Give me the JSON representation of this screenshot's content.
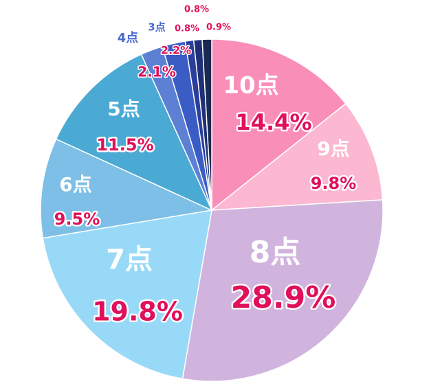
{
  "chart_data": {
    "type": "pie",
    "categories": [
      "10点",
      "9点",
      "8点",
      "7点",
      "6点",
      "5点",
      "4点",
      "3点",
      null,
      null,
      null
    ],
    "values": [
      14.4,
      9.8,
      28.9,
      19.8,
      9.5,
      11.5,
      2.1,
      2.2,
      0.8,
      0.8,
      0.9
    ],
    "value_labels": [
      "14.4%",
      "9.8%",
      "28.9%",
      "19.8%",
      "9.5%",
      "11.5%",
      "2.1%",
      "2.2%",
      "0.8%",
      "0.8%",
      "0.9%"
    ],
    "colors": [
      "#f98fb8",
      "#fbb8d0",
      "#d0b4de",
      "#99d9f8",
      "#7dbfe6",
      "#4aaad4",
      "#5b80d4",
      "#3a5cc4",
      "#2a3f9a",
      "#1f2f78",
      "#1a2a52"
    ]
  }
}
